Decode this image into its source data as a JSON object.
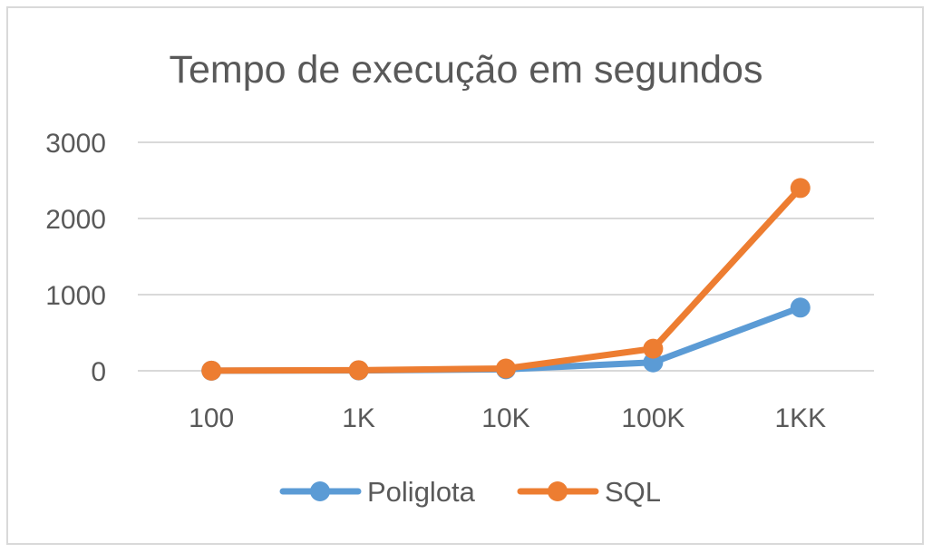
{
  "chart_data": {
    "type": "line",
    "title": "Tempo de execução em segundos",
    "xlabel": "",
    "ylabel": "",
    "categories": [
      "100",
      "1K",
      "10K",
      "100K",
      "1KK"
    ],
    "ylim": [
      0,
      3000
    ],
    "yticks": [
      "0",
      "1000",
      "2000",
      "3000"
    ],
    "grid": true,
    "legend_position": "bottom",
    "series": [
      {
        "name": "Poliglota",
        "color": "#5B9BD5",
        "values": [
          1,
          5,
          20,
          110,
          830
        ]
      },
      {
        "name": "SQL",
        "color": "#ED7D31",
        "values": [
          2,
          8,
          30,
          290,
          2400
        ]
      }
    ]
  }
}
